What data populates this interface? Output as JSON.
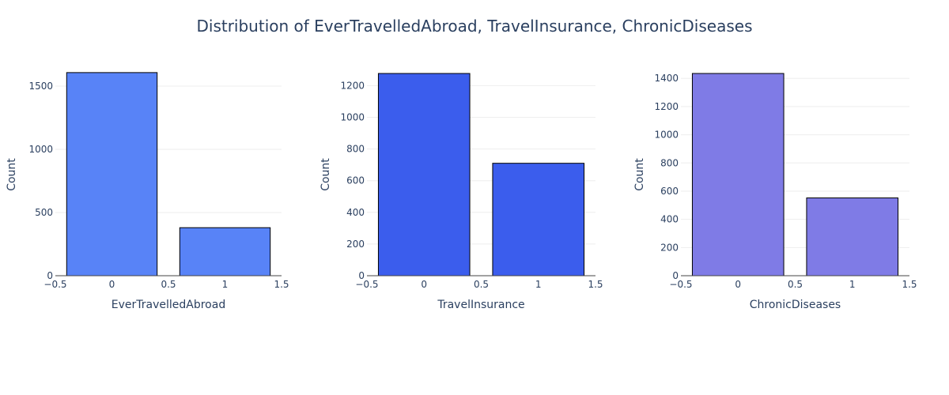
{
  "title": "Distribution of EverTravelledAbroad, TravelInsurance, ChronicDiseases",
  "chart_data": [
    {
      "type": "bar",
      "xlabel": "EverTravelledAbroad",
      "ylabel": "Count",
      "x": [
        0,
        1
      ],
      "values": [
        1607,
        380
      ],
      "color": "#5883f7",
      "xlim": [
        -0.5,
        1.5
      ],
      "ylim": [
        0,
        1600
      ],
      "xticks": [
        -0.5,
        0,
        0.5,
        1,
        1.5
      ],
      "xtick_labels": [
        "−0.5",
        "0",
        "0.5",
        "1",
        "1.5"
      ],
      "yticks": [
        0,
        500,
        1000,
        1500
      ],
      "ytick_labels": [
        "0",
        "500",
        "1000",
        "1500"
      ],
      "grid": true
    },
    {
      "type": "bar",
      "xlabel": "TravelInsurance",
      "ylabel": "Count",
      "x": [
        0,
        1
      ],
      "values": [
        1277,
        710
      ],
      "color": "#3b5ded",
      "xlim": [
        -0.5,
        1.5
      ],
      "ylim": [
        0,
        1277
      ],
      "xticks": [
        -0.5,
        0,
        0.5,
        1,
        1.5
      ],
      "xtick_labels": [
        "−0.5",
        "0",
        "0.5",
        "1",
        "1.5"
      ],
      "yticks": [
        0,
        200,
        400,
        600,
        800,
        1000,
        1200
      ],
      "ytick_labels": [
        "0",
        "200",
        "400",
        "600",
        "800",
        "1000",
        "1200"
      ],
      "grid": true
    },
    {
      "type": "bar",
      "xlabel": "ChronicDiseases",
      "ylabel": "Count",
      "x": [
        0,
        1
      ],
      "values": [
        1435,
        552
      ],
      "color": "#7f7be6",
      "xlim": [
        -0.5,
        1.5
      ],
      "ylim": [
        0,
        1435
      ],
      "xticks": [
        -0.5,
        0,
        0.5,
        1,
        1.5
      ],
      "xtick_labels": [
        "−0.5",
        "0",
        "0.5",
        "1",
        "1.5"
      ],
      "yticks": [
        0,
        200,
        400,
        600,
        800,
        1000,
        1200,
        1400
      ],
      "ytick_labels": [
        "0",
        "200",
        "400",
        "600",
        "800",
        "1000",
        "1200",
        "1400"
      ],
      "grid": true
    }
  ]
}
